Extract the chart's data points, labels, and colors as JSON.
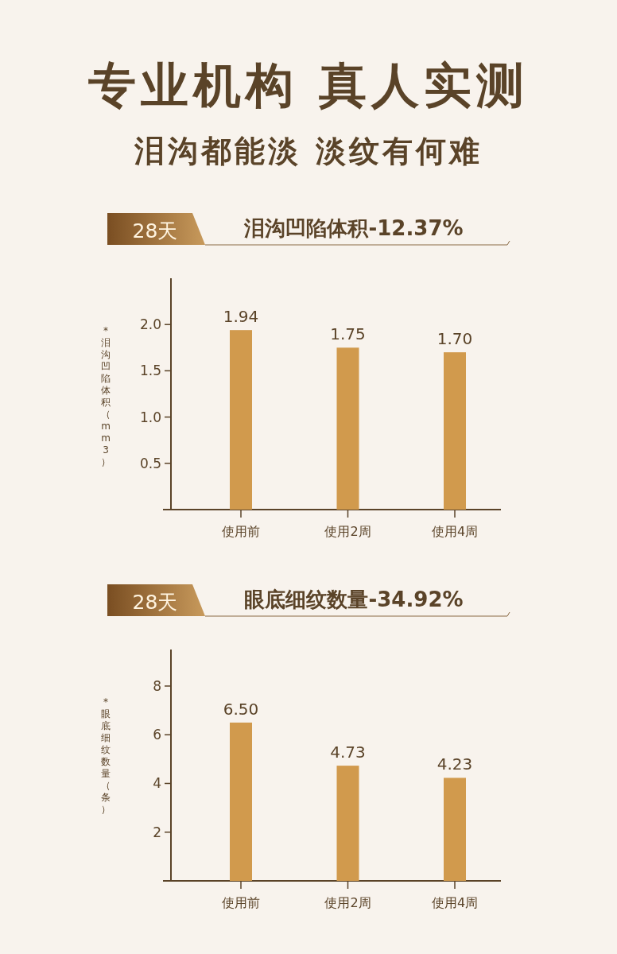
{
  "chart_data": [
    {
      "type": "bar",
      "title": "泪沟凹陷体积-12.37%",
      "subtitle": "28天",
      "annotations": [
        "专业机构 真人实测",
        "泪沟都能淡 淡纹有何难"
      ],
      "ylabel": "*泪沟凹陷体积（mm3）",
      "categories": [
        "使用前",
        "使用2周",
        "使用4周"
      ],
      "values": [
        1.94,
        1.75,
        1.7
      ],
      "value_labels": [
        "1.94",
        "1.75",
        "1.70"
      ],
      "color": "#d19a4d",
      "ylim": [
        0,
        2.5
      ],
      "yticks": [
        0.5,
        {
          "value": 1,
          "label": "1.0"
        },
        1.5,
        {
          "value": 2,
          "label": "2.0"
        }
      ]
    },
    {
      "type": "bar",
      "title": "眼底细纹数量-34.92%",
      "subtitle": "28天",
      "ylabel": "*眼底细纹数量（条）",
      "categories": [
        "使用前",
        "使用2周",
        "使用4周"
      ],
      "values": [
        6.5,
        4.73,
        4.23
      ],
      "value_labels": [
        "6.50",
        "4.73",
        "4.23"
      ],
      "color": "#d19a4d",
      "ylim": [
        0,
        9.5
      ],
      "yticks": [
        2,
        4,
        6,
        8
      ]
    }
  ]
}
